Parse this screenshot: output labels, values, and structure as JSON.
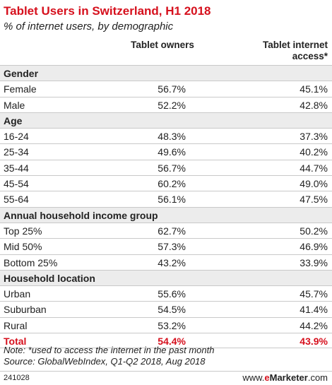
{
  "header": {
    "title": "Tablet Users in Switzerland, H1 2018",
    "subtitle": "% of internet users, by demographic"
  },
  "columns": {
    "col1": "Tablet owners",
    "col2": "Tablet internet access*"
  },
  "sections": [
    {
      "name": "Gender",
      "rows": [
        {
          "label": "Female",
          "owners": "56.7%",
          "access": "45.1%"
        },
        {
          "label": "Male",
          "owners": "52.2%",
          "access": "42.8%"
        }
      ]
    },
    {
      "name": "Age",
      "rows": [
        {
          "label": "16-24",
          "owners": "48.3%",
          "access": "37.3%"
        },
        {
          "label": "25-34",
          "owners": "49.6%",
          "access": "40.2%"
        },
        {
          "label": "35-44",
          "owners": "56.7%",
          "access": "44.7%"
        },
        {
          "label": "45-54",
          "owners": "60.2%",
          "access": "49.0%"
        },
        {
          "label": "55-64",
          "owners": "56.1%",
          "access": "47.5%"
        }
      ]
    },
    {
      "name": "Annual household income group",
      "rows": [
        {
          "label": "Top 25%",
          "owners": "62.7%",
          "access": "50.2%"
        },
        {
          "label": "Mid 50%",
          "owners": "57.3%",
          "access": "46.9%"
        },
        {
          "label": "Bottom 25%",
          "owners": "43.2%",
          "access": "33.9%"
        }
      ]
    },
    {
      "name": "Household location",
      "rows": [
        {
          "label": "Urban",
          "owners": "55.6%",
          "access": "45.7%"
        },
        {
          "label": "Suburban",
          "owners": "54.5%",
          "access": "41.4%"
        },
        {
          "label": "Rural",
          "owners": "53.2%",
          "access": "44.2%"
        }
      ]
    }
  ],
  "total": {
    "label": "Total",
    "owners": "54.4%",
    "access": "43.9%"
  },
  "notes": {
    "note": "Note: *used to access the internet in the past month",
    "source": "Source: GlobalWebIndex, Q1-Q2 2018, Aug 2018"
  },
  "footer": {
    "chart_id": "241028",
    "brand_prefix": "www.",
    "brand_e": "e",
    "brand_name": "Marketer",
    "brand_suffix": ".com"
  },
  "colors": {
    "accent": "#d6101d",
    "section_bg": "#ececec",
    "divider": "#c9c9c9"
  }
}
